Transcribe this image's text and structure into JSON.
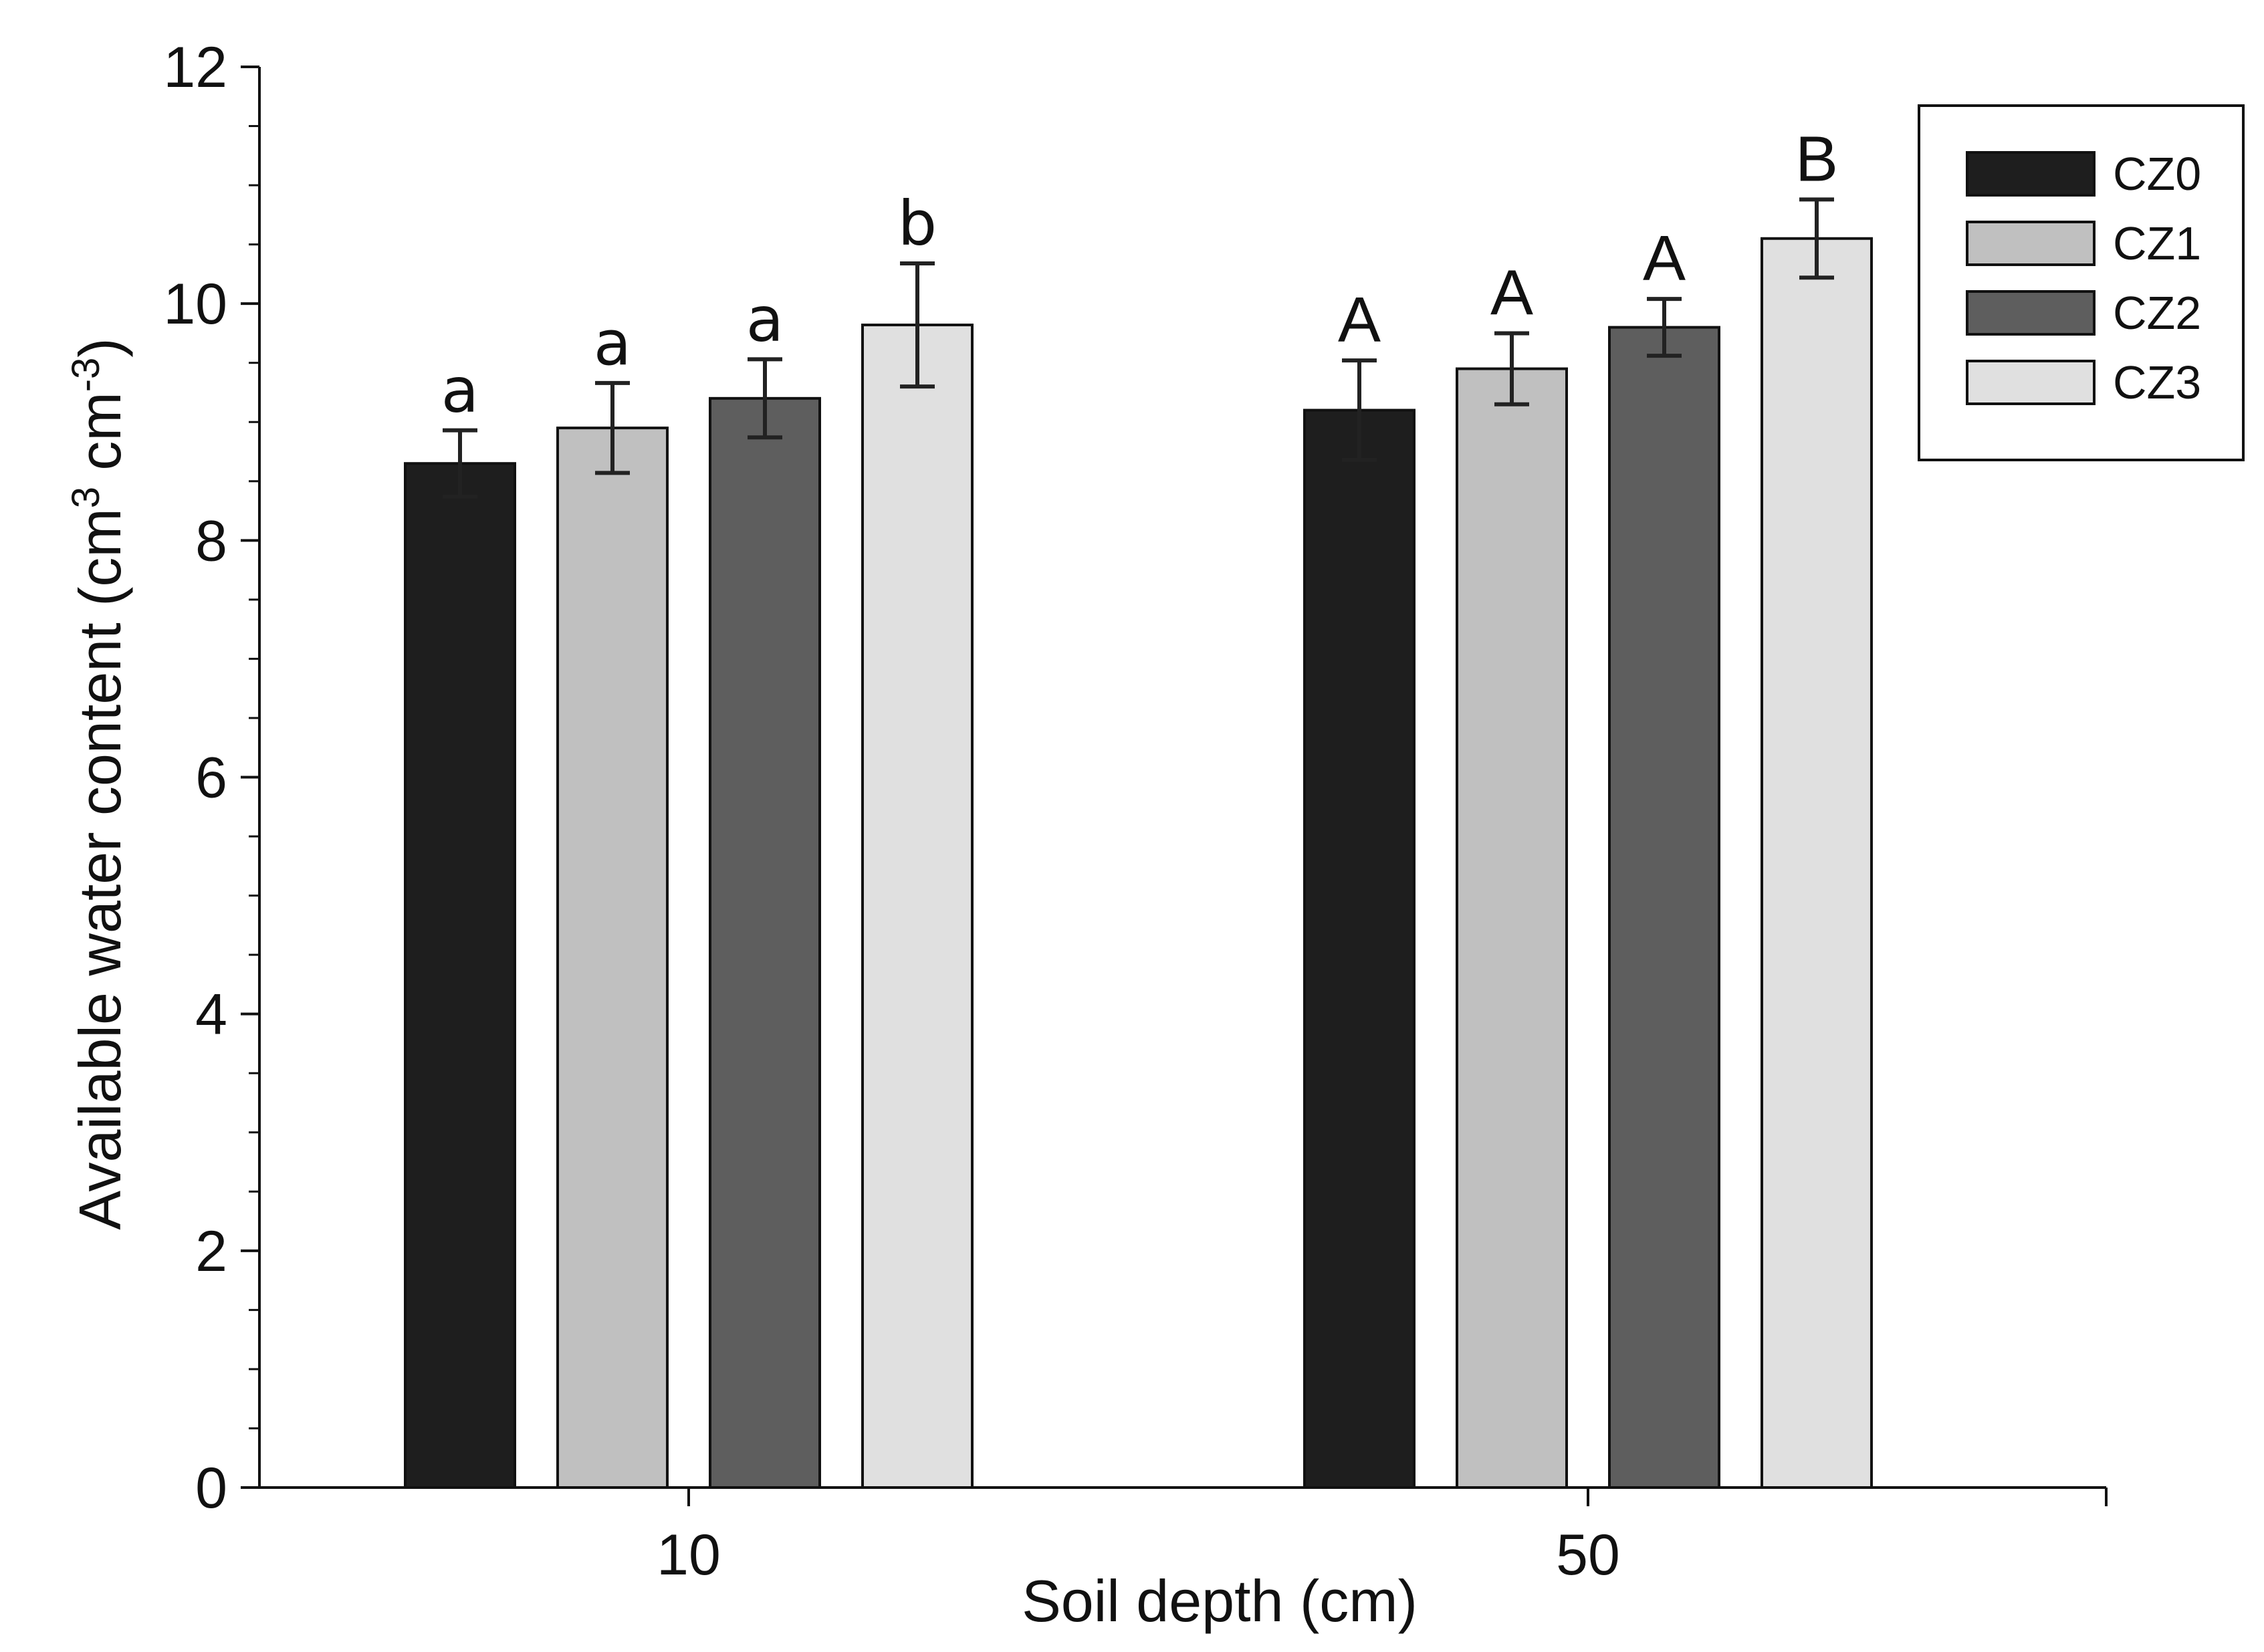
{
  "chart_data": {
    "type": "bar",
    "xlabel": "Soil depth (cm)",
    "ylabel": {
      "main": "Available water content (cm",
      "sup1": "3",
      "mid": " cm",
      "sup2": "-3",
      "end": ")"
    },
    "ylim": [
      0,
      12
    ],
    "yticks": [
      "0",
      "2",
      "4",
      "6",
      "8",
      "10",
      "12"
    ],
    "categories": [
      "10",
      "50"
    ],
    "series": [
      {
        "name": "CZ0",
        "color": "#1e1e1e",
        "values": [
          8.65,
          9.1
        ],
        "errors": [
          0.28,
          0.42
        ],
        "labels": [
          "a",
          "A"
        ]
      },
      {
        "name": "CZ1",
        "color": "#c0c0c0",
        "values": [
          8.95,
          9.45
        ],
        "errors": [
          0.38,
          0.3
        ],
        "labels": [
          "a",
          "A"
        ]
      },
      {
        "name": "CZ2",
        "color": "#5e5e5e",
        "values": [
          9.2,
          9.8
        ],
        "errors": [
          0.33,
          0.24
        ],
        "labels": [
          "a",
          "A"
        ]
      },
      {
        "name": "CZ3",
        "color": "#e0e0e0",
        "values": [
          9.82,
          10.55
        ],
        "errors": [
          0.52,
          0.33
        ],
        "labels": [
          "b",
          "B"
        ]
      }
    ],
    "legend_position": "top-right"
  }
}
